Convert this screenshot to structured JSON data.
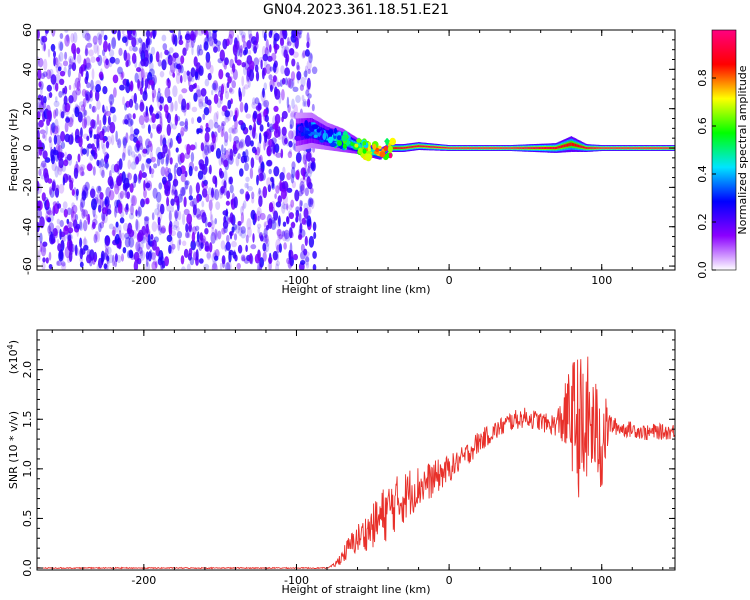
{
  "title": "GN04.2023.361.18.51.E21",
  "chart_data": [
    {
      "type": "heatmap",
      "xlabel": "Height of straight line (km)",
      "ylabel": "Frequency (Hz)",
      "xlim": [
        -270,
        148
      ],
      "ylim": [
        -62,
        60
      ],
      "x_ticks": [
        -200,
        -100,
        0,
        100
      ],
      "x_tick_labels": [
        "-200",
        "-100",
        "0",
        "100"
      ],
      "y_ticks": [
        60,
        40,
        20,
        0,
        -20,
        -40,
        -60
      ],
      "y_tick_labels": [
        "60",
        "40",
        "20",
        "0",
        "-20",
        "-40",
        "-60"
      ],
      "colorbar": {
        "label": "Normalized spectral amplitude",
        "range": [
          0,
          1
        ],
        "ticks": [
          0.0,
          0.2,
          0.4,
          0.6,
          0.8
        ],
        "tick_labels": [
          "0.0",
          "0.2",
          "0.4",
          "0.6",
          "0.8"
        ],
        "colors": [
          "#ffffff",
          "#8b00ff",
          "#0000ff",
          "#00e5ff",
          "#00ff00",
          "#ffff00",
          "#ff0000",
          "#ff0080"
        ]
      },
      "noise_region_x": [
        -270,
        -88
      ],
      "noise_amplitude": 0.12,
      "ridge": {
        "x": [
          -100,
          -90,
          -80,
          -70,
          -60,
          -50,
          -45,
          -40,
          -30,
          -20,
          0,
          40,
          70,
          80,
          90,
          100,
          148
        ],
        "y": [
          8,
          9,
          6,
          4,
          1,
          -2,
          -3,
          0,
          0,
          1,
          0,
          0,
          0,
          2,
          0,
          0,
          0
        ],
        "amplitude": [
          0.25,
          0.35,
          0.4,
          0.5,
          0.6,
          0.7,
          0.75,
          0.85,
          0.9,
          0.92,
          0.95,
          0.95,
          0.9,
          0.85,
          0.9,
          0.95,
          0.95
        ],
        "halfwidth_hz": [
          10,
          9,
          7,
          6,
          4,
          3,
          3,
          2,
          2,
          2,
          1.5,
          1.5,
          2.5,
          4,
          2,
          1.5,
          1.5
        ]
      }
    },
    {
      "type": "line",
      "xlabel": "Height of straight line (km)",
      "ylabel": "SNR (10 * v/v)",
      "scale_note": "(x10",
      "scale_exp": "4",
      "scale_close": ")",
      "xlim": [
        -270,
        148
      ],
      "ylim": [
        -0.02,
        2.4
      ],
      "x_ticks": [
        -200,
        -100,
        0,
        100
      ],
      "x_tick_labels": [
        "-200",
        "-100",
        "0",
        "100"
      ],
      "y_ticks": [
        0.0,
        0.5,
        1.0,
        1.5,
        2.0
      ],
      "y_tick_labels": [
        "0.0",
        "0.5",
        "1.0",
        "1.5",
        "2.0"
      ],
      "color": "#e8302a",
      "series": [
        {
          "x": [
            -270,
            -250,
            -200,
            -150,
            -100,
            -80,
            -75,
            -70,
            -65,
            -60,
            -55,
            -50,
            -45,
            -40,
            -35,
            -30,
            -25,
            -20,
            -15,
            -10,
            -5,
            0,
            5,
            10,
            15,
            20,
            25,
            30,
            35,
            40,
            45,
            50,
            55,
            60,
            65,
            70,
            75,
            80,
            85,
            88,
            90,
            95,
            100,
            105,
            110,
            115,
            120,
            125,
            130,
            135,
            140,
            148
          ],
          "y": [
            0.0,
            0.0,
            0.0,
            0.0,
            0.0,
            0.0,
            0.03,
            0.12,
            0.22,
            0.3,
            0.35,
            0.42,
            0.5,
            0.58,
            0.65,
            0.7,
            0.78,
            0.82,
            0.86,
            0.9,
            0.95,
            1.0,
            1.06,
            1.12,
            1.2,
            1.28,
            1.33,
            1.38,
            1.43,
            1.48,
            1.5,
            1.52,
            1.5,
            1.48,
            1.45,
            1.45,
            1.5,
            1.55,
            1.45,
            1.2,
            1.5,
            1.4,
            1.3,
            1.45,
            1.42,
            1.4,
            1.4,
            1.38,
            1.36,
            1.38,
            1.37,
            1.38
          ],
          "noise": [
            0.0,
            0.0,
            0.0,
            0.0,
            0.0,
            0.0,
            0.02,
            0.08,
            0.12,
            0.15,
            0.18,
            0.22,
            0.28,
            0.3,
            0.28,
            0.26,
            0.25,
            0.22,
            0.2,
            0.18,
            0.16,
            0.14,
            0.12,
            0.12,
            0.12,
            0.12,
            0.1,
            0.1,
            0.1,
            0.1,
            0.1,
            0.1,
            0.1,
            0.1,
            0.1,
            0.12,
            0.3,
            0.55,
            0.75,
            0.9,
            0.7,
            0.5,
            0.6,
            0.12,
            0.08,
            0.08,
            0.08,
            0.08,
            0.08,
            0.08,
            0.08,
            0.08
          ]
        }
      ]
    }
  ]
}
